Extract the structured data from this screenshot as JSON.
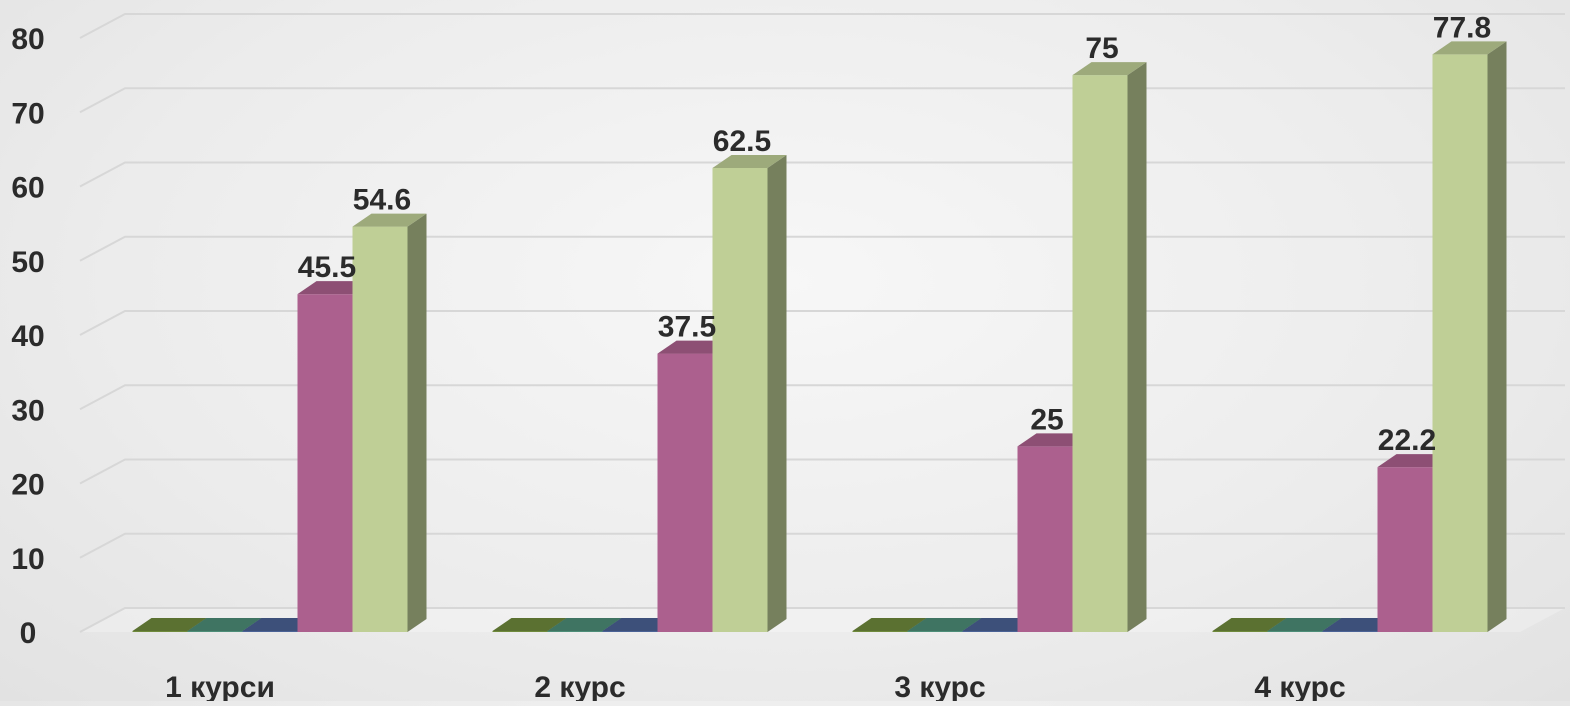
{
  "chart_data": {
    "type": "bar",
    "style": "3d-column",
    "categories": [
      "1 курси",
      "2 курс",
      "3 курс",
      "4 курс"
    ],
    "series": [
      {
        "values": [
          0,
          0,
          0,
          0
        ],
        "color": "#6f8a3c"
      },
      {
        "values": [
          0,
          0,
          0,
          0
        ],
        "color": "#4d8d78"
      },
      {
        "values": [
          0,
          0,
          0,
          0
        ],
        "color": "#4a6295"
      },
      {
        "values": [
          45.5,
          37.5,
          25,
          22.2
        ],
        "color": "#ac608e",
        "labels": [
          "45.5",
          "37.5",
          "25",
          "22.2"
        ]
      },
      {
        "values": [
          54.6,
          62.5,
          75,
          77.8
        ],
        "color": "#bfcf96",
        "labels": [
          "54.6",
          "62.5",
          "75",
          "77.8"
        ]
      }
    ],
    "yticks": [
      "0",
      "10",
      "20",
      "30",
      "40",
      "50",
      "60",
      "70",
      "80"
    ],
    "ylim": [
      0,
      80
    ],
    "grid": true,
    "legend": "none",
    "title": "",
    "xlabel": "",
    "ylabel": ""
  }
}
